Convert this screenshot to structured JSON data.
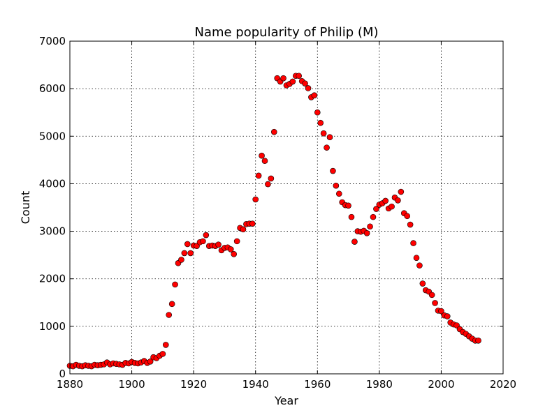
{
  "chart_data": {
    "type": "scatter",
    "title": "Name popularity of Philip (M)",
    "xlabel": "Year",
    "ylabel": "Count",
    "xlim": [
      1880,
      2020
    ],
    "ylim": [
      0,
      7000
    ],
    "xticks": [
      1880,
      1900,
      1920,
      1940,
      1960,
      1980,
      2000,
      2020
    ],
    "yticks": [
      0,
      1000,
      2000,
      3000,
      4000,
      5000,
      6000,
      7000
    ],
    "grid": true,
    "marker_color": "#ff0000",
    "series": [
      {
        "x": [
          1880,
          1881,
          1882,
          1883,
          1884,
          1885,
          1886,
          1887,
          1888,
          1889,
          1890,
          1891,
          1892,
          1893,
          1894,
          1895,
          1896,
          1897,
          1898,
          1899,
          1900,
          1901,
          1902,
          1903,
          1904,
          1905,
          1906,
          1907,
          1908,
          1909,
          1910,
          1911,
          1912,
          1913,
          1914,
          1915,
          1916,
          1917,
          1918,
          1919,
          1920,
          1921,
          1922,
          1923,
          1924,
          1925,
          1926,
          1927,
          1928,
          1929,
          1930,
          1931,
          1932,
          1933,
          1934,
          1935,
          1936,
          1937,
          1938,
          1939,
          1940,
          1941,
          1942,
          1943,
          1944,
          1945,
          1946,
          1947,
          1948,
          1949,
          1950,
          1951,
          1952,
          1953,
          1954,
          1955,
          1956,
          1957,
          1958,
          1959,
          1960,
          1961,
          1962,
          1963,
          1964,
          1965,
          1966,
          1967,
          1968,
          1969,
          1970,
          1971,
          1972,
          1973,
          1974,
          1975,
          1976,
          1977,
          1978,
          1979,
          1980,
          1981,
          1982,
          1983,
          1984,
          1985,
          1986,
          1987,
          1988,
          1989,
          1990,
          1991,
          1992,
          1993,
          1994,
          1995,
          1996,
          1997,
          1998,
          1999,
          2000,
          2001,
          2002,
          2003,
          2004,
          2005,
          2006,
          2007,
          2008,
          2009,
          2010,
          2011,
          2012
        ],
        "y": [
          170,
          160,
          190,
          170,
          160,
          180,
          170,
          160,
          190,
          180,
          190,
          200,
          240,
          200,
          220,
          210,
          200,
          190,
          230,
          220,
          250,
          230,
          220,
          240,
          270,
          230,
          260,
          350,
          330,
          380,
          420,
          610,
          1240,
          1470,
          1880,
          2330,
          2400,
          2540,
          2730,
          2540,
          2700,
          2690,
          2770,
          2790,
          2920,
          2690,
          2700,
          2690,
          2720,
          2600,
          2650,
          2660,
          2620,
          2520,
          2790,
          3070,
          3040,
          3150,
          3160,
          3160,
          3670,
          4170,
          4590,
          4480,
          3990,
          4110,
          5090,
          6220,
          6150,
          6220,
          6070,
          6100,
          6150,
          6270,
          6270,
          6160,
          6110,
          6010,
          5820,
          5860,
          5500,
          5280,
          5060,
          4760,
          4980,
          4270,
          3960,
          3790,
          3610,
          3550,
          3540,
          3300,
          2780,
          3000,
          2990,
          3010,
          2960,
          3100,
          3300,
          3470,
          3560,
          3590,
          3640,
          3480,
          3520,
          3710,
          3650,
          3830,
          3380,
          3320,
          3140,
          2750,
          2440,
          2280,
          1900,
          1760,
          1730,
          1660,
          1490,
          1330,
          1320,
          1230,
          1210,
          1080,
          1040,
          1020,
          940,
          880,
          840,
          790,
          740,
          700,
          700
        ]
      }
    ]
  }
}
